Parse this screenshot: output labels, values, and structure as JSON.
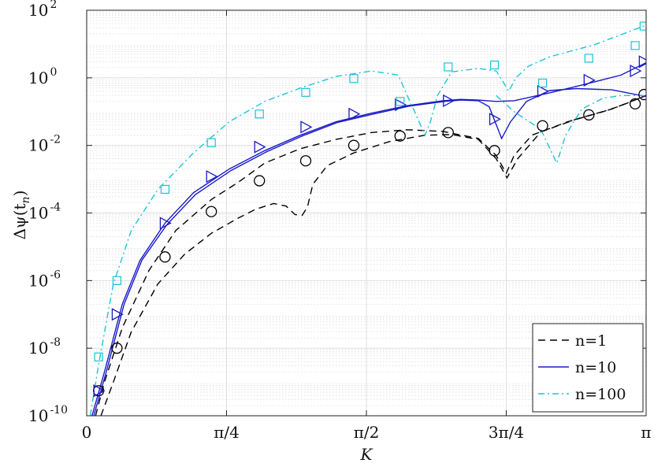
{
  "chart_data": {
    "type": "line",
    "xscale": "linear",
    "yscale": "log",
    "xlim": [
      0,
      3.14159
    ],
    "ylim": [
      1e-10,
      100
    ],
    "xlabel": "K",
    "ylabel": "Δψ(t_n)",
    "ylabel_parts": {
      "main": "Δψ(t",
      "sub": "n",
      "close": ")"
    },
    "grid": true,
    "legend_position": "bottom-right",
    "x_ticks": [
      {
        "value": 0,
        "label": "0"
      },
      {
        "value": 0.785398,
        "label": "π/4"
      },
      {
        "value": 1.570796,
        "label": "π/2"
      },
      {
        "value": 2.356194,
        "label": "3π/4"
      },
      {
        "value": 3.141593,
        "label": "π"
      }
    ],
    "y_ticks": [
      {
        "value": 1e-10,
        "base": "10",
        "exp": "-10"
      },
      {
        "value": 1e-08,
        "base": "10",
        "exp": "-8"
      },
      {
        "value": 1e-06,
        "base": "10",
        "exp": "-6"
      },
      {
        "value": 0.0001,
        "base": "10",
        "exp": "-4"
      },
      {
        "value": 0.01,
        "base": "10",
        "exp": "-2"
      },
      {
        "value": 1,
        "base": "10",
        "exp": "0"
      },
      {
        "value": 100,
        "base": "10",
        "exp": "2"
      }
    ],
    "series": [
      {
        "name": "n=1",
        "color": "#000000",
        "dash": "9,6",
        "marker": "circle",
        "curves": [
          [
            [
              0.05,
              1e-10
            ],
            [
              0.1,
              1e-09
            ],
            [
              0.2,
              4e-08
            ],
            [
              0.35,
              2e-06
            ],
            [
              0.5,
              3e-05
            ],
            [
              0.7,
              0.00025
            ],
            [
              0.85,
              0.0008
            ],
            [
              1.0,
              0.003
            ],
            [
              1.2,
              0.008
            ],
            [
              1.4,
              0.015
            ],
            [
              1.6,
              0.024
            ],
            [
              1.8,
              0.029
            ],
            [
              2.0,
              0.026
            ],
            [
              2.2,
              0.016
            ],
            [
              2.3,
              0.005
            ],
            [
              2.356,
              0.0015
            ],
            [
              2.4,
              0.005
            ],
            [
              2.5,
              0.02
            ],
            [
              2.7,
              0.05
            ],
            [
              2.9,
              0.1
            ],
            [
              3.0,
              0.15
            ],
            [
              3.1416,
              0.3
            ]
          ],
          [
            [
              0.08,
              1e-10
            ],
            [
              0.15,
              1e-09
            ],
            [
              0.25,
              3e-08
            ],
            [
              0.4,
              8e-07
            ],
            [
              0.55,
              6e-06
            ],
            [
              0.7,
              2.5e-05
            ],
            [
              0.85,
              7e-05
            ],
            [
              0.95,
              0.00013
            ],
            [
              1.05,
              0.00019
            ],
            [
              1.12,
              0.00016
            ],
            [
              1.17,
              9e-05
            ],
            [
              1.21,
              8.5e-05
            ],
            [
              1.24,
              0.00015
            ],
            [
              1.27,
              0.0007
            ],
            [
              1.35,
              0.0025
            ],
            [
              1.5,
              0.006
            ],
            [
              1.7,
              0.013
            ],
            [
              1.9,
              0.02
            ],
            [
              2.05,
              0.021
            ],
            [
              2.2,
              0.015
            ],
            [
              2.3,
              0.004
            ],
            [
              2.36,
              0.0011
            ],
            [
              2.42,
              0.004
            ],
            [
              2.55,
              0.025
            ],
            [
              2.75,
              0.06
            ],
            [
              2.95,
              0.12
            ],
            [
              3.1416,
              0.3
            ]
          ]
        ],
        "markers": [
          [
            0.067,
            5.5e-10
          ],
          [
            0.17,
            1e-08
          ],
          [
            0.44,
            5e-06
          ],
          [
            0.7,
            0.00011
          ],
          [
            0.97,
            0.0009
          ],
          [
            1.23,
            0.0035
          ],
          [
            1.5,
            0.01
          ],
          [
            1.76,
            0.019
          ],
          [
            2.03,
            0.024
          ],
          [
            2.29,
            0.007
          ],
          [
            2.56,
            0.038
          ],
          [
            2.82,
            0.08
          ],
          [
            3.08,
            0.17
          ],
          [
            3.13,
            0.32
          ]
        ]
      },
      {
        "name": "n=10",
        "color": "#1a1ac8",
        "dash": "",
        "marker": "triangle-right",
        "curves": [
          [
            [
              0.03,
              1e-10
            ],
            [
              0.1,
              2e-09
            ],
            [
              0.2,
              2e-07
            ],
            [
              0.3,
              4e-06
            ],
            [
              0.44,
              5e-05
            ],
            [
              0.6,
              0.0004
            ],
            [
              0.8,
              0.002
            ],
            [
              1.0,
              0.007
            ],
            [
              1.2,
              0.02
            ],
            [
              1.4,
              0.05
            ],
            [
              1.6,
              0.09
            ],
            [
              1.8,
              0.15
            ],
            [
              2.0,
              0.21
            ],
            [
              2.1,
              0.23
            ],
            [
              2.2,
              0.22
            ],
            [
              2.3,
              0.2
            ],
            [
              2.4,
              0.21
            ],
            [
              2.6,
              0.36
            ],
            [
              2.8,
              0.65
            ],
            [
              3.0,
              1.2
            ],
            [
              3.1416,
              2.8
            ]
          ],
          [
            [
              0.04,
              1e-10
            ],
            [
              0.11,
              2e-09
            ],
            [
              0.21,
              2e-07
            ],
            [
              0.31,
              4e-06
            ],
            [
              0.45,
              4.5e-05
            ],
            [
              0.61,
              0.00035
            ],
            [
              0.81,
              0.0018
            ],
            [
              1.01,
              0.0065
            ],
            [
              1.21,
              0.019
            ],
            [
              1.41,
              0.048
            ],
            [
              1.61,
              0.085
            ],
            [
              1.81,
              0.145
            ],
            [
              2.01,
              0.2
            ],
            [
              2.1,
              0.22
            ],
            [
              2.2,
              0.21
            ],
            [
              2.26,
              0.14
            ],
            [
              2.31,
              0.03
            ],
            [
              2.33,
              0.016
            ],
            [
              2.38,
              0.05
            ],
            [
              2.47,
              0.2
            ],
            [
              2.6,
              0.42
            ],
            [
              2.75,
              0.48
            ],
            [
              2.95,
              0.44
            ],
            [
              3.1416,
              0.28
            ]
          ]
        ],
        "markers": [
          [
            0.067,
            5.5e-10
          ],
          [
            0.17,
            1e-07
          ],
          [
            0.44,
            5e-05
          ],
          [
            0.7,
            0.0012
          ],
          [
            0.97,
            0.009
          ],
          [
            1.23,
            0.035
          ],
          [
            1.5,
            0.085
          ],
          [
            1.76,
            0.16
          ],
          [
            2.03,
            0.21
          ],
          [
            2.29,
            0.06
          ],
          [
            2.56,
            0.4
          ],
          [
            2.82,
            0.85
          ],
          [
            3.08,
            1.6
          ],
          [
            3.13,
            3
          ]
        ]
      },
      {
        "name": "n=100",
        "color": "#1cc4d6",
        "dash": "8,4,2,4",
        "marker": "square",
        "curves": [
          [
            [
              0.02,
              1e-10
            ],
            [
              0.07,
              4e-09
            ],
            [
              0.15,
              8e-07
            ],
            [
              0.25,
              3e-05
            ],
            [
              0.4,
              0.0005
            ],
            [
              0.6,
              0.006
            ],
            [
              0.8,
              0.05
            ],
            [
              1.0,
              0.2
            ],
            [
              1.2,
              0.5
            ],
            [
              1.4,
              1.1
            ],
            [
              1.6,
              1.6
            ],
            [
              1.75,
              1.2
            ],
            [
              1.8,
              0.3
            ],
            [
              1.85,
              0.08
            ],
            [
              1.9,
              0.02
            ],
            [
              1.93,
              0.05
            ],
            [
              1.97,
              0.3
            ],
            [
              2.05,
              1.5
            ],
            [
              2.2,
              1.9
            ],
            [
              2.3,
              1.6
            ],
            [
              2.33,
              0.9
            ],
            [
              2.37,
              0.4
            ],
            [
              2.41,
              1
            ],
            [
              2.48,
              2.2
            ],
            [
              2.6,
              4.2
            ],
            [
              2.85,
              9.5
            ],
            [
              3.1416,
              36.0
            ]
          ],
          [
            [
              2.3,
              0.3
            ],
            [
              2.4,
              0.1
            ],
            [
              2.55,
              0.03
            ],
            [
              2.64,
              0.003
            ],
            [
              2.69,
              0.02
            ],
            [
              2.78,
              0.12
            ],
            [
              2.9,
              0.25
            ],
            [
              3.0,
              0.3
            ],
            [
              3.1416,
              0.3
            ]
          ]
        ],
        "markers": [
          [
            0.067,
            5.5e-09
          ],
          [
            0.17,
            1e-06
          ],
          [
            0.44,
            0.0005
          ],
          [
            0.7,
            0.012
          ],
          [
            0.97,
            0.085
          ],
          [
            1.23,
            0.37
          ],
          [
            1.5,
            0.95
          ],
          [
            1.76,
            0.2
          ],
          [
            2.03,
            2.1
          ],
          [
            2.29,
            2.4
          ],
          [
            2.56,
            0.7
          ],
          [
            2.82,
            3.8
          ],
          [
            3.08,
            9
          ],
          [
            3.13,
            34.0
          ]
        ]
      }
    ]
  }
}
